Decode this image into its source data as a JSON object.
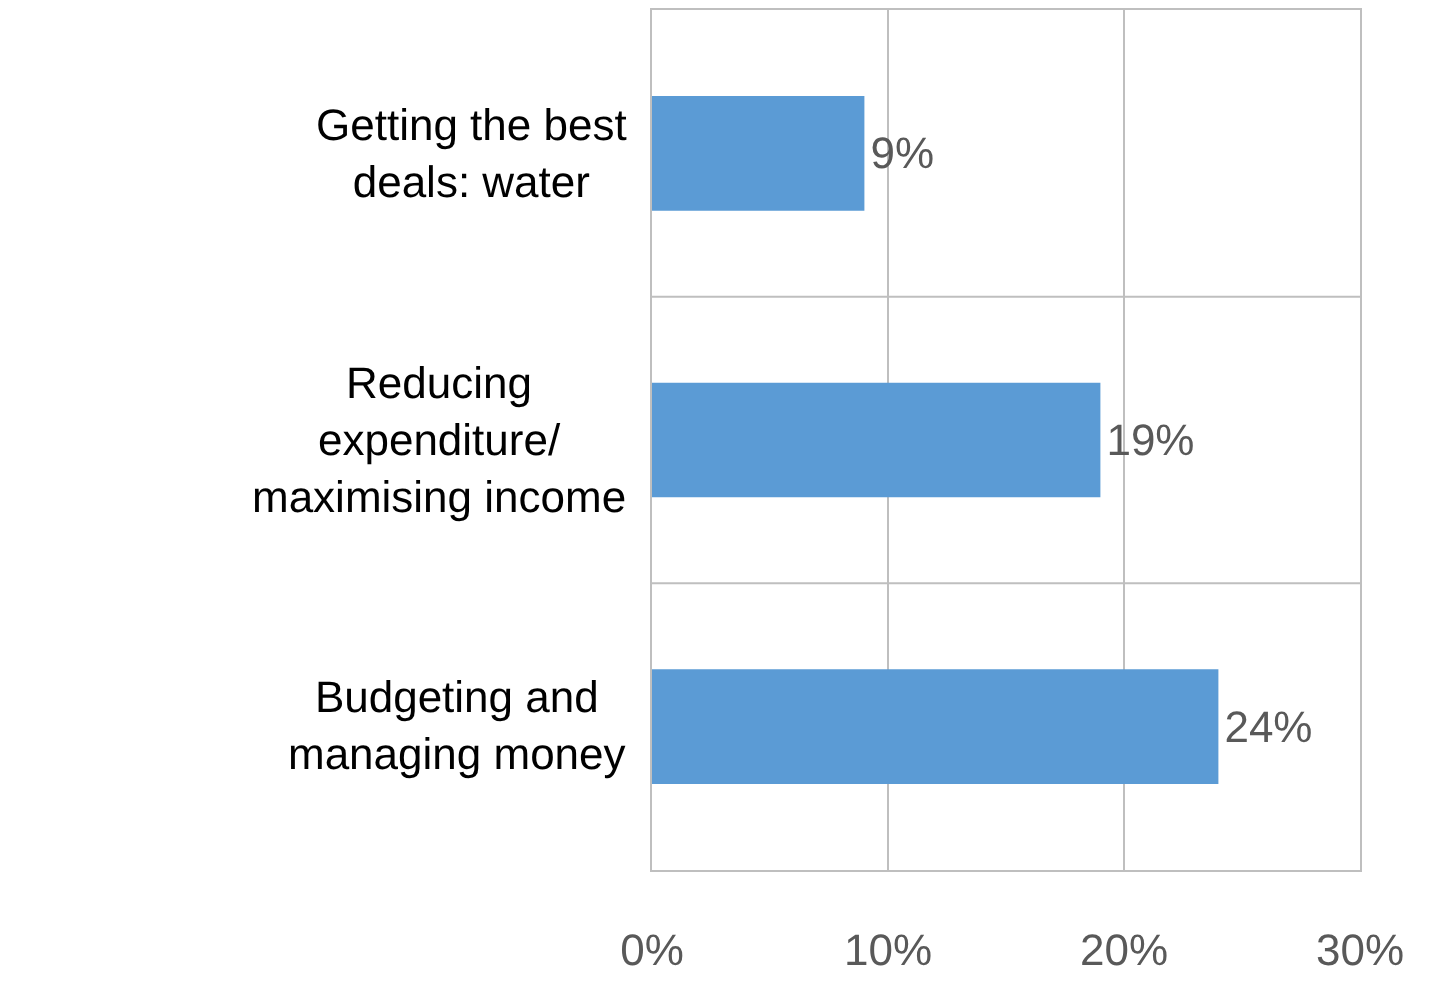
{
  "chart_data": {
    "type": "bar",
    "orientation": "horizontal",
    "categories": [
      "Getting the best deals: water",
      "Reducing expenditure/ maximising income",
      "Budgeting and managing money"
    ],
    "values": [
      9,
      19,
      24
    ],
    "color": "#5b9bd5",
    "value_labels": [
      "9%",
      "19%",
      "24%"
    ],
    "xlim": [
      0,
      30
    ],
    "xticks": [
      {
        "value": 0,
        "label": "0%"
      },
      {
        "value": 10,
        "label": "10%"
      },
      {
        "value": 20,
        "label": "20%"
      },
      {
        "value": 30,
        "label": "30%"
      }
    ],
    "grid": true,
    "legend": false
  }
}
